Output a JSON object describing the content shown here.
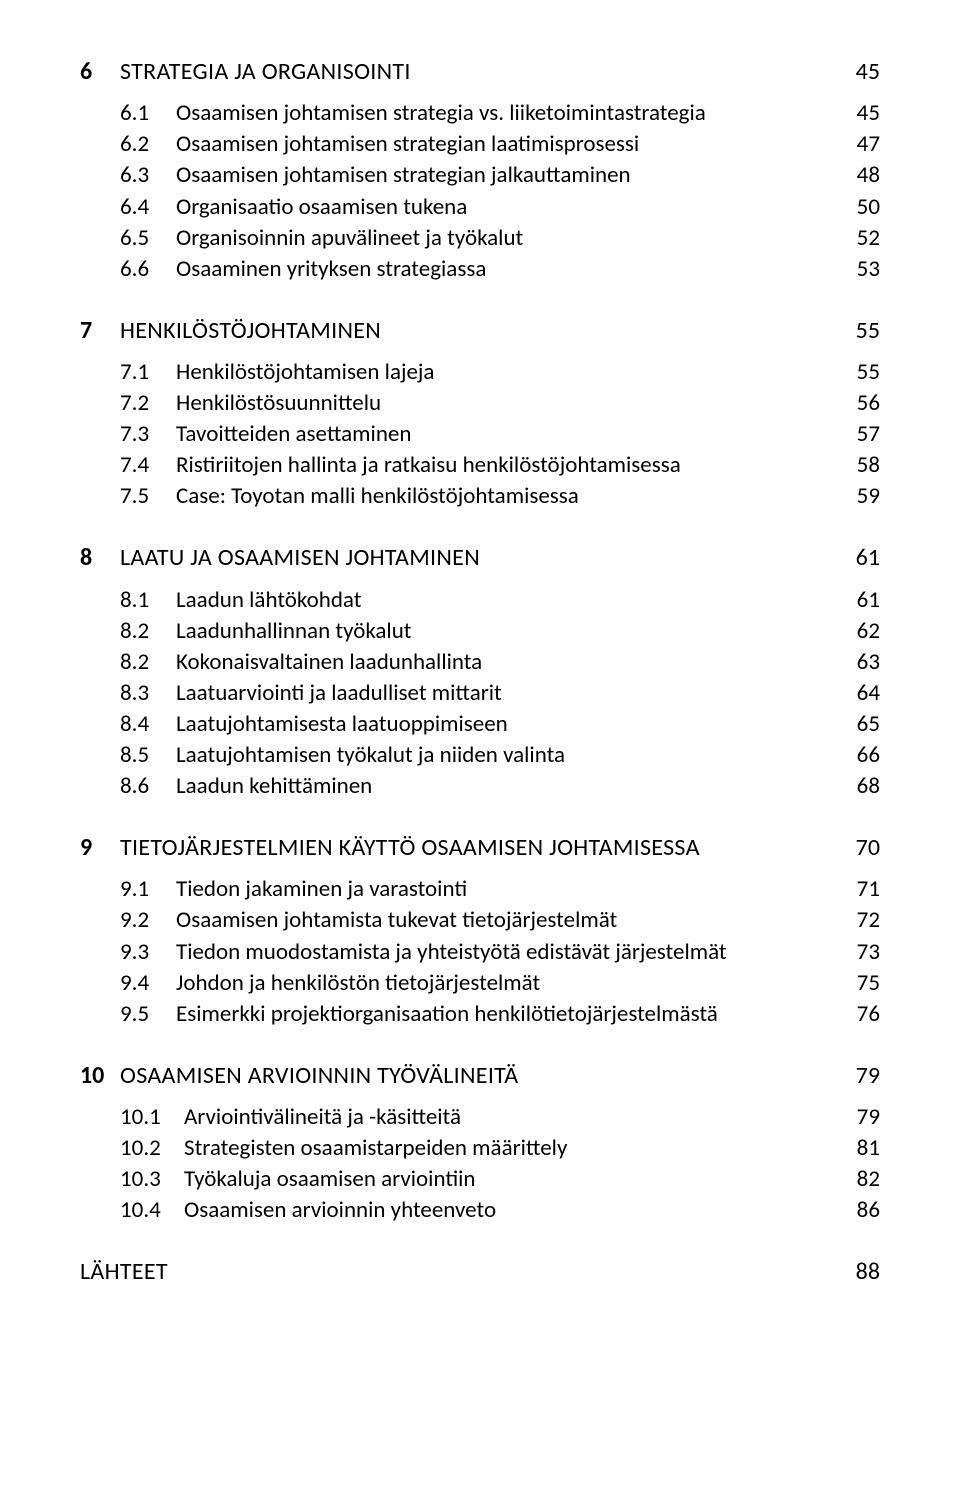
{
  "chapters": [
    {
      "num": "6",
      "title": "STRATEGIA JA ORGANISOINTI",
      "page": "45",
      "subs": [
        {
          "num": "6.1",
          "title": "Osaamisen johtamisen strategia vs. liiketoimintastrategia",
          "page": "45"
        },
        {
          "num": "6.2",
          "title": "Osaamisen johtamisen strategian laatimisprosessi",
          "page": "47"
        },
        {
          "num": "6.3",
          "title": "Osaamisen johtamisen strategian jalkauttaminen",
          "page": "48"
        },
        {
          "num": "6.4",
          "title": "Organisaatio osaamisen tukena",
          "page": "50"
        },
        {
          "num": "6.5",
          "title": "Organisoinnin apuvälineet ja työkalut",
          "page": "52"
        },
        {
          "num": "6.6",
          "title": "Osaaminen yrityksen strategiassa",
          "page": "53"
        }
      ]
    },
    {
      "num": "7",
      "title": "HENKILÖSTÖJOHTAMINEN",
      "page": "55",
      "subs": [
        {
          "num": "7.1",
          "title": "Henkilöstöjohtamisen lajeja",
          "page": "55"
        },
        {
          "num": "7.2",
          "title": "Henkilöstösuunnittelu",
          "page": "56"
        },
        {
          "num": "7.3",
          "title": "Tavoitteiden asettaminen",
          "page": "57"
        },
        {
          "num": "7.4",
          "title": "Ristiriitojen hallinta ja ratkaisu henkilöstöjohtamisessa",
          "page": "58"
        },
        {
          "num": "7.5",
          "title": "Case: Toyotan malli henkilöstöjohtamisessa",
          "page": "59"
        }
      ]
    },
    {
      "num": "8",
      "title": "LAATU JA OSAAMISEN JOHTAMINEN",
      "page": "61",
      "subs": [
        {
          "num": "8.1",
          "title": "Laadun lähtökohdat",
          "page": "61"
        },
        {
          "num": "8.2",
          "title": "Laadunhallinnan työkalut",
          "page": "62"
        },
        {
          "num": "8.2",
          "title": "Kokonaisvaltainen laadunhallinta",
          "page": "63"
        },
        {
          "num": "8.3",
          "title": "Laatuarviointi ja laadulliset mittarit",
          "page": "64"
        },
        {
          "num": "8.4",
          "title": "Laatujohtamisesta laatuoppimiseen",
          "page": "65"
        },
        {
          "num": "8.5",
          "title": "Laatujohtamisen työkalut ja niiden valinta",
          "page": "66"
        },
        {
          "num": "8.6",
          "title": "Laadun kehittäminen",
          "page": "68"
        }
      ]
    },
    {
      "num": "9",
      "title": "TIETOJÄRJESTELMIEN KÄYTTÖ OSAAMISEN JOHTAMISESSA",
      "page": "70",
      "subs": [
        {
          "num": "9.1",
          "title": "Tiedon jakaminen ja varastointi",
          "page": "71"
        },
        {
          "num": "9.2",
          "title": "Osaamisen johtamista tukevat tietojärjestelmät",
          "page": "72"
        },
        {
          "num": "9.3",
          "title": "Tiedon muodostamista ja yhteistyötä edistävät järjestelmät",
          "page": "73"
        },
        {
          "num": "9.4",
          "title": "Johdon ja henkilöstön tietojärjestelmät",
          "page": "75"
        },
        {
          "num": "9.5",
          "title": "Esimerkki projektiorganisaation henkilötietojärjestelmästä",
          "page": "76"
        }
      ]
    },
    {
      "num": "10",
      "title": "OSAAMISEN ARVIOINNIN TYÖVÄLINEITÄ",
      "page": "79",
      "wide": true,
      "subs": [
        {
          "num": "10.1",
          "title": "Arviointivälineitä ja -käsitteitä",
          "page": "79"
        },
        {
          "num": "10.2",
          "title": " Strategisten osaamistarpeiden määrittely",
          "page": "81"
        },
        {
          "num": "10.3",
          "title": "Työkaluja osaamisen arviointiin",
          "page": "82"
        },
        {
          "num": "10.4",
          "title": "Osaamisen arvioinnin yhteenveto",
          "page": "86"
        }
      ]
    }
  ],
  "final": {
    "title": "LÄHTEET",
    "page": "88"
  }
}
